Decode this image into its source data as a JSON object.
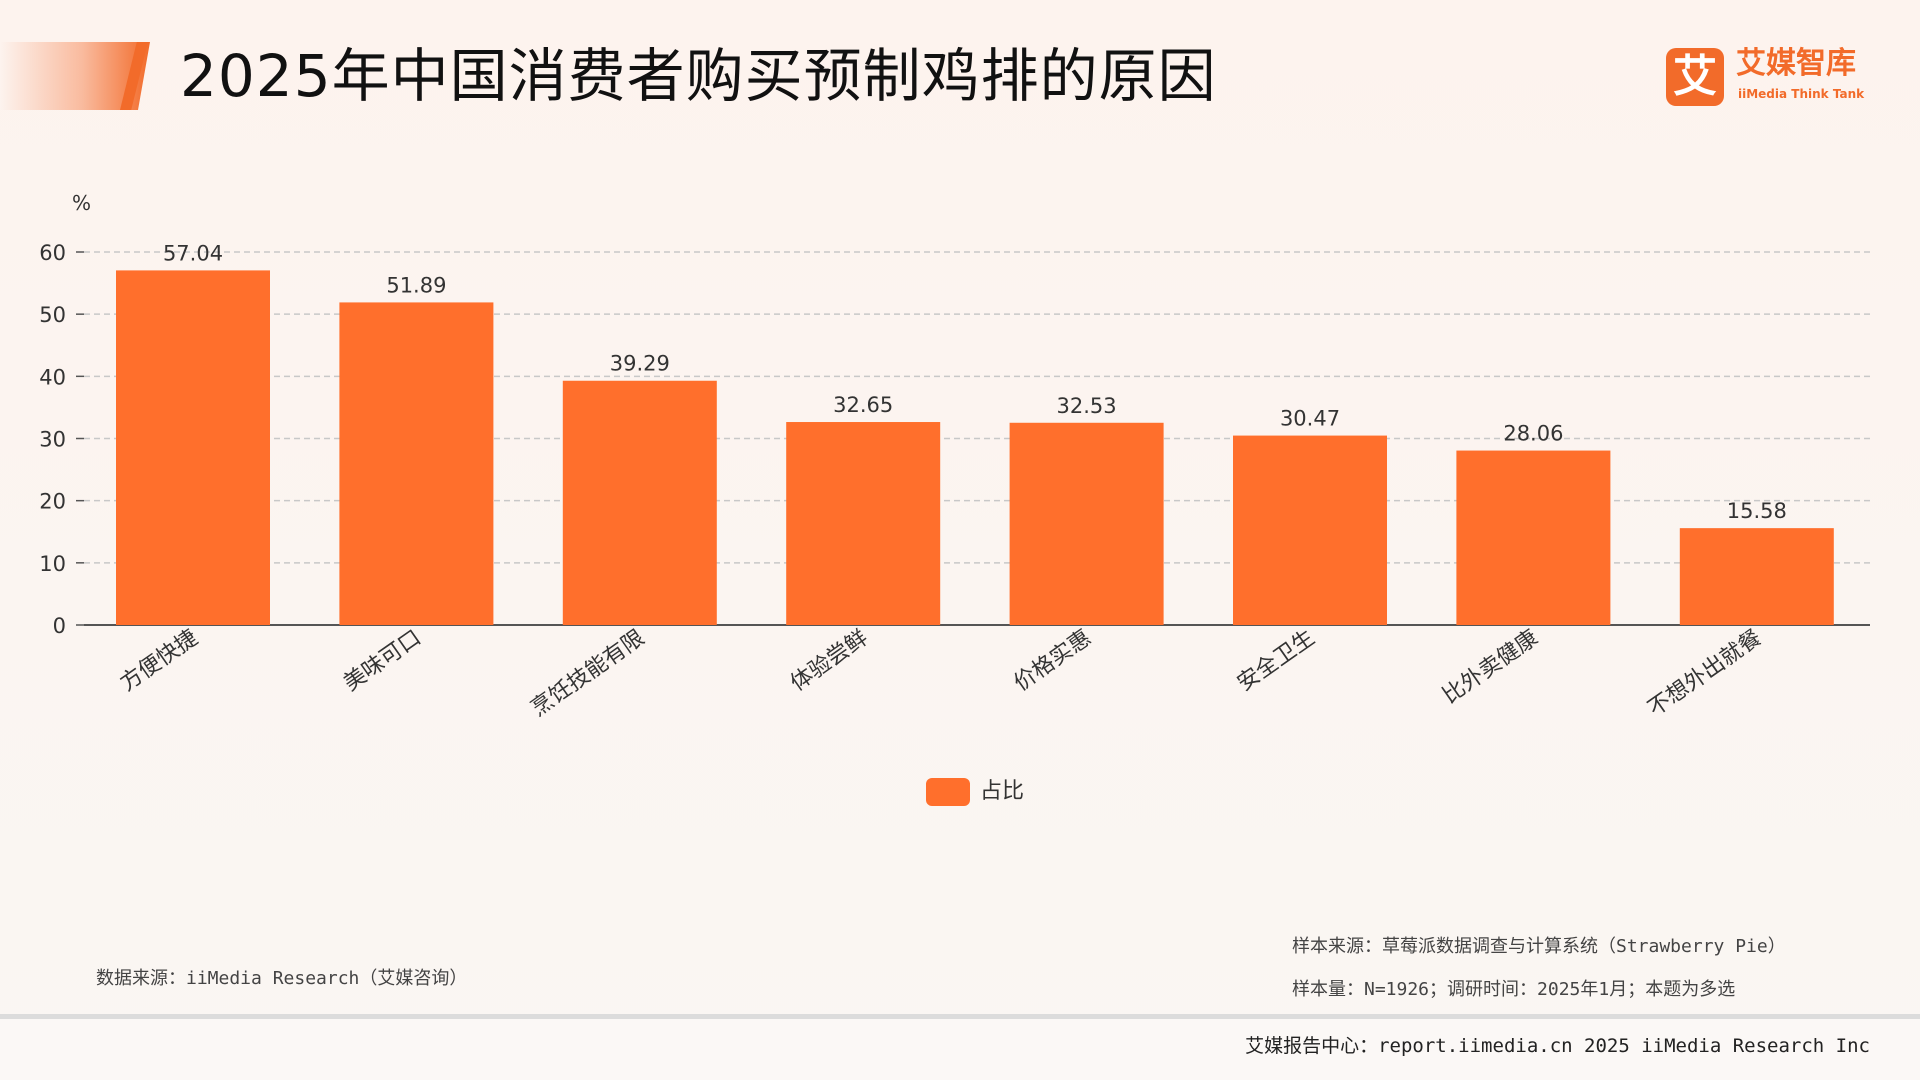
{
  "header": {
    "title": "2025年中国消费者购买预制鸡排的原因"
  },
  "logo": {
    "mark": "艾",
    "name_cn": "艾媒智库",
    "name_en": "iiMedia Think Tank"
  },
  "chart_data": {
    "type": "bar",
    "title": "2025年中国消费者购买预制鸡排的原因",
    "ylabel": "%",
    "xlabel": "",
    "ylim": [
      0,
      60
    ],
    "yticks": [
      0,
      10,
      20,
      30,
      40,
      50,
      60
    ],
    "grid": true,
    "legend_position": "bottom",
    "categories": [
      "方便快捷",
      "美味可口",
      "烹饪技能有限",
      "体验尝鲜",
      "价格实惠",
      "安全卫生",
      "比外卖健康",
      "不想外出就餐"
    ],
    "series": [
      {
        "name": "占比",
        "values": [
          57.04,
          51.89,
          39.29,
          32.65,
          32.53,
          30.47,
          28.06,
          15.58
        ],
        "color": "#ff6f2c"
      }
    ]
  },
  "footer": {
    "data_source": "数据来源：iiMedia Research（艾媒咨询）",
    "sample_source": "样本来源：草莓派数据调查与计算系统（Strawberry Pie）",
    "sample_size": "样本量：N=1926；调研时间：2025年1月；本题为多选",
    "report_center": "艾媒报告中心：report.iimedia.cn 2025 iiMedia Research Inc"
  }
}
